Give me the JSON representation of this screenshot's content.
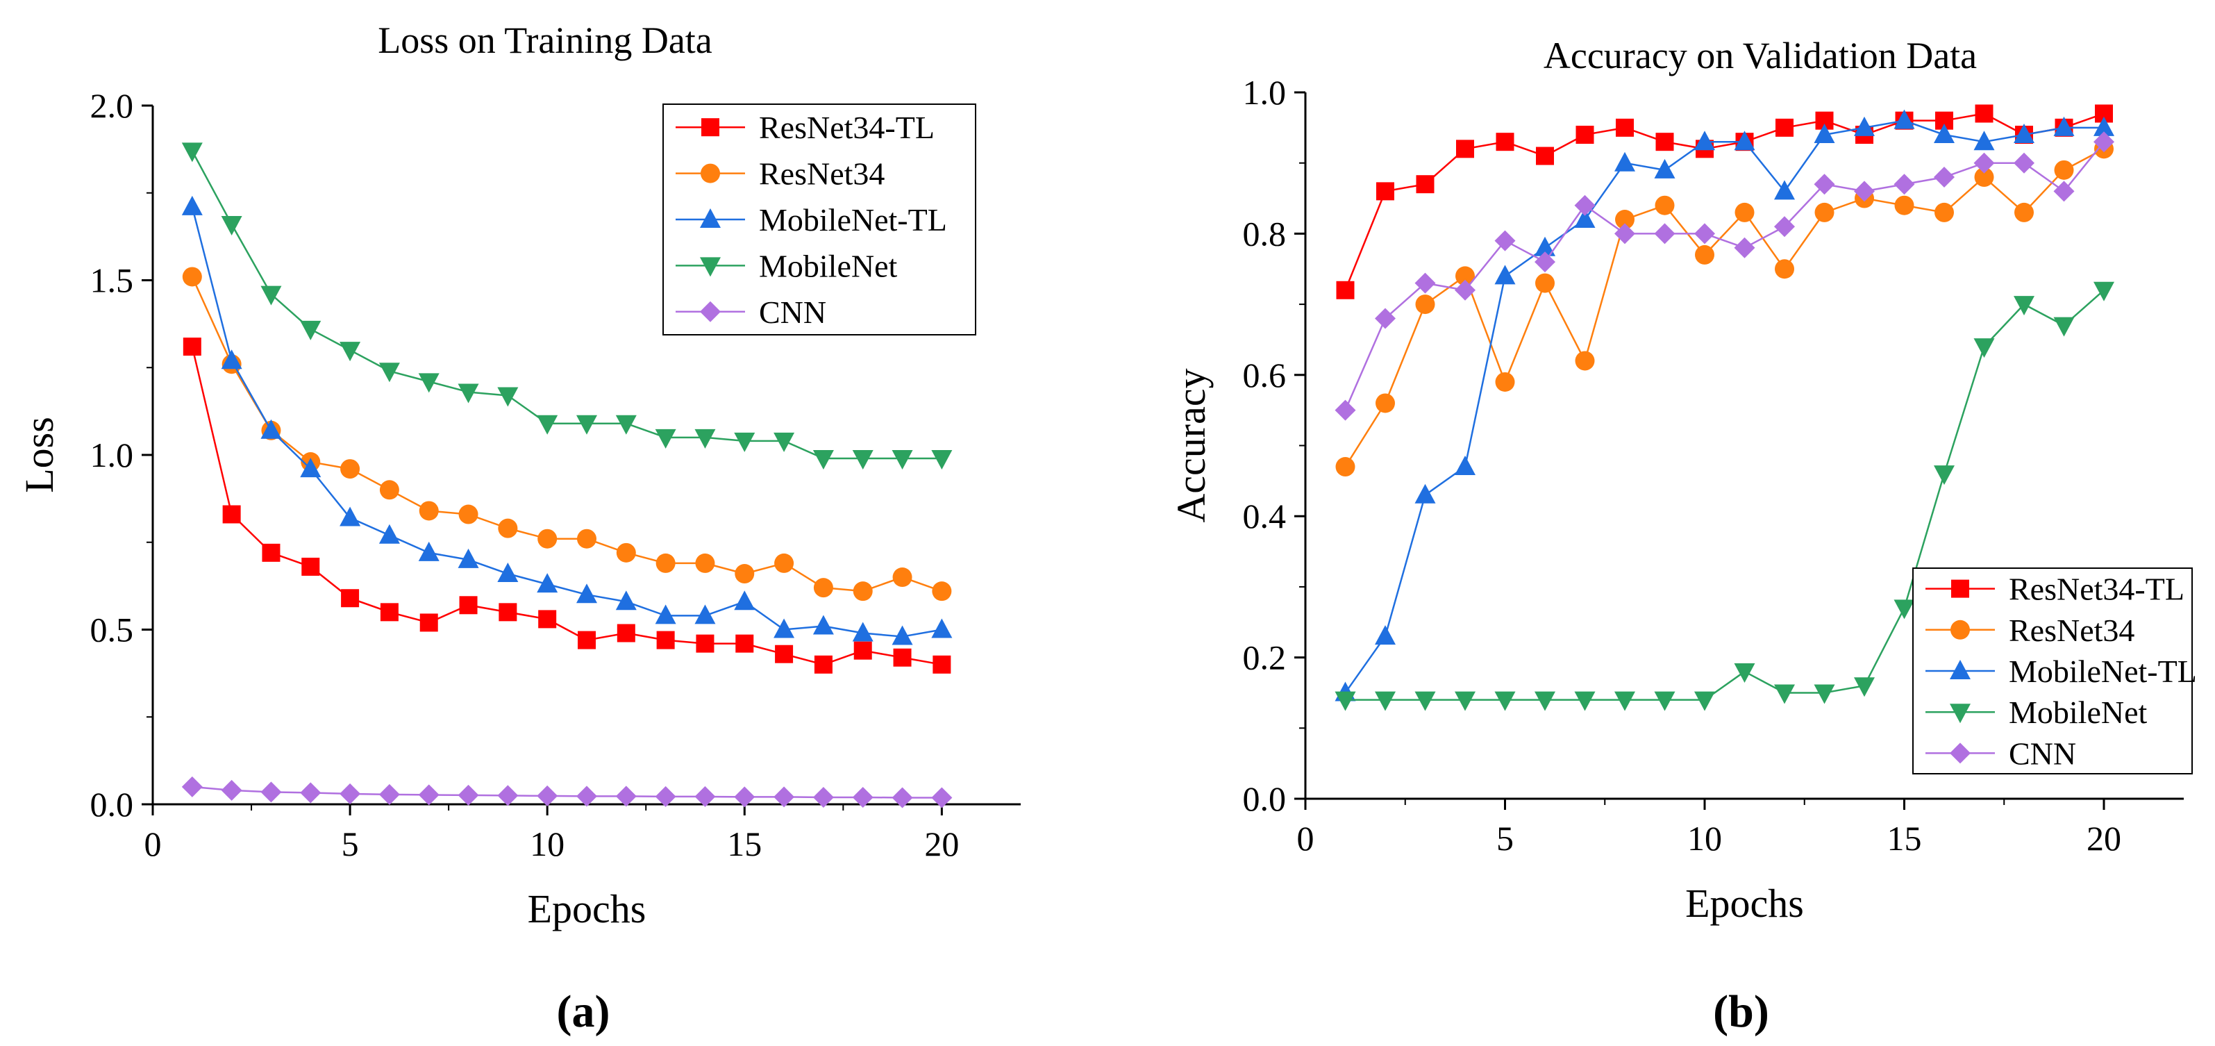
{
  "colors": {
    "ResNet34-TL": "#ff0000",
    "ResNet34": "#ff7f0e",
    "MobileNet-TL": "#1f6fe0",
    "MobileNet": "#2ca25f",
    "CNN": "#b070e0"
  },
  "chart_data": [
    {
      "type": "line",
      "panel": "a",
      "panel_label": "(a)",
      "title": "Loss on Training Data",
      "xlabel": "Epochs",
      "ylabel": "Loss",
      "xlim": [
        0,
        22
      ],
      "ylim": [
        0,
        2.0
      ],
      "xticks": [
        0,
        5,
        10,
        15,
        20
      ],
      "yticks": [
        0.0,
        0.5,
        1.0,
        1.5,
        2.0
      ],
      "xtick_labels": [
        "0",
        "5",
        "10",
        "15",
        "20"
      ],
      "ytick_labels": [
        "0.0",
        "0.5",
        "1.0",
        "1.5",
        "2.0"
      ],
      "legend_position": "top-right",
      "x": [
        1,
        2,
        3,
        4,
        5,
        6,
        7,
        8,
        9,
        10,
        11,
        12,
        13,
        14,
        15,
        16,
        17,
        18,
        19,
        20
      ],
      "series": [
        {
          "name": "ResNet34-TL",
          "marker": "square",
          "values": [
            1.31,
            0.83,
            0.72,
            0.68,
            0.59,
            0.55,
            0.52,
            0.57,
            0.55,
            0.53,
            0.47,
            0.49,
            0.47,
            0.46,
            0.46,
            0.43,
            0.4,
            0.44,
            0.42,
            0.4
          ]
        },
        {
          "name": "ResNet34",
          "marker": "circle",
          "values": [
            1.51,
            1.26,
            1.07,
            0.98,
            0.96,
            0.9,
            0.84,
            0.83,
            0.79,
            0.76,
            0.76,
            0.72,
            0.69,
            0.69,
            0.66,
            0.69,
            0.62,
            0.61,
            0.65,
            0.61
          ]
        },
        {
          "name": "MobileNet-TL",
          "marker": "triangle-up",
          "values": [
            1.71,
            1.27,
            1.07,
            0.96,
            0.82,
            0.77,
            0.72,
            0.7,
            0.66,
            0.63,
            0.6,
            0.58,
            0.54,
            0.54,
            0.58,
            0.5,
            0.51,
            0.49,
            0.48,
            0.5
          ]
        },
        {
          "name": "MobileNet",
          "marker": "triangle-down",
          "values": [
            1.87,
            1.66,
            1.46,
            1.36,
            1.3,
            1.24,
            1.21,
            1.18,
            1.17,
            1.09,
            1.09,
            1.09,
            1.05,
            1.05,
            1.04,
            1.04,
            0.99,
            0.99,
            0.99,
            0.99
          ]
        },
        {
          "name": "CNN",
          "marker": "diamond",
          "values": [
            0.05,
            0.04,
            0.035,
            0.033,
            0.03,
            0.028,
            0.027,
            0.026,
            0.025,
            0.024,
            0.023,
            0.023,
            0.022,
            0.022,
            0.021,
            0.021,
            0.02,
            0.02,
            0.019,
            0.019
          ]
        }
      ]
    },
    {
      "type": "line",
      "panel": "b",
      "panel_label": "(b)",
      "title": "Accuracy on Validation Data",
      "xlabel": "Epochs",
      "ylabel": "Accuracy",
      "xlim": [
        0,
        22
      ],
      "ylim": [
        0,
        1.0
      ],
      "xticks": [
        0,
        5,
        10,
        15,
        20
      ],
      "yticks": [
        0.0,
        0.2,
        0.4,
        0.6,
        0.8,
        1.0
      ],
      "xtick_labels": [
        "0",
        "5",
        "10",
        "15",
        "20"
      ],
      "ytick_labels": [
        "0.0",
        "0.2",
        "0.4",
        "0.6",
        "0.8",
        "1.0"
      ],
      "legend_position": "bottom-right",
      "x": [
        1,
        2,
        3,
        4,
        5,
        6,
        7,
        8,
        9,
        10,
        11,
        12,
        13,
        14,
        15,
        16,
        17,
        18,
        19,
        20
      ],
      "series": [
        {
          "name": "ResNet34-TL",
          "marker": "square",
          "values": [
            0.72,
            0.86,
            0.87,
            0.92,
            0.93,
            0.91,
            0.94,
            0.95,
            0.93,
            0.92,
            0.93,
            0.95,
            0.96,
            0.94,
            0.96,
            0.96,
            0.97,
            0.94,
            0.95,
            0.97
          ]
        },
        {
          "name": "ResNet34",
          "marker": "circle",
          "values": [
            0.47,
            0.56,
            0.7,
            0.74,
            0.59,
            0.73,
            0.62,
            0.82,
            0.84,
            0.77,
            0.83,
            0.75,
            0.83,
            0.85,
            0.84,
            0.83,
            0.88,
            0.83,
            0.89,
            0.92
          ]
        },
        {
          "name": "MobileNet-TL",
          "marker": "triangle-up",
          "values": [
            0.15,
            0.23,
            0.43,
            0.47,
            0.74,
            0.78,
            0.82,
            0.9,
            0.89,
            0.93,
            0.93,
            0.86,
            0.94,
            0.95,
            0.96,
            0.94,
            0.93,
            0.94,
            0.95,
            0.95
          ]
        },
        {
          "name": "MobileNet",
          "marker": "triangle-down",
          "values": [
            0.14,
            0.14,
            0.14,
            0.14,
            0.14,
            0.14,
            0.14,
            0.14,
            0.14,
            0.14,
            0.18,
            0.15,
            0.15,
            0.16,
            0.27,
            0.46,
            0.64,
            0.7,
            0.67,
            0.72
          ]
        },
        {
          "name": "CNN",
          "marker": "diamond",
          "values": [
            0.55,
            0.68,
            0.73,
            0.72,
            0.79,
            0.76,
            0.84,
            0.8,
            0.8,
            0.8,
            0.78,
            0.81,
            0.87,
            0.86,
            0.87,
            0.88,
            0.9,
            0.9,
            0.86,
            0.93
          ]
        }
      ]
    }
  ]
}
